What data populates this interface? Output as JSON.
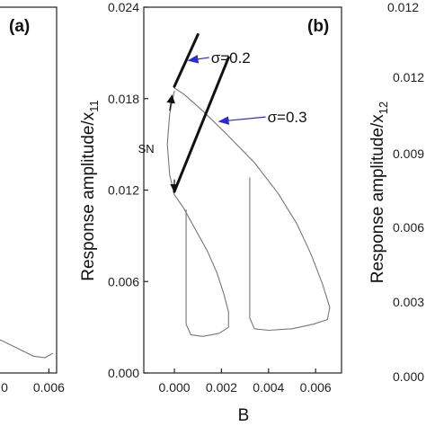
{
  "colors": {
    "curve": "#777777",
    "bold_line": "#111111",
    "arrow": "#2b2bd6",
    "axis": "#222222"
  },
  "chart_data": [
    {
      "panel": "(a)",
      "type": "line",
      "xlim": [
        0.0,
        0.0068
      ],
      "x_ticks": [
        "0.006"
      ],
      "x_tick_values": [
        0.006
      ],
      "series": [
        {
          "values_xy": [
            [
              0.0,
              0.0024
            ],
            [
              0.0012,
              0.0021
            ],
            [
              0.0028,
              0.0016
            ],
            [
              0.0044,
              0.0011
            ],
            [
              0.0056,
              0.001
            ],
            [
              0.0064,
              0.0013
            ]
          ]
        }
      ]
    },
    {
      "panel": "(b)",
      "type": "line",
      "xlabel": "B",
      "ylabel_main": "Response amplitude/x",
      "ylabel_sub": "11",
      "xlim": [
        -0.0013,
        0.0071
      ],
      "ylim": [
        0.0,
        0.024
      ],
      "x_ticks": [
        "0.000",
        "0.002",
        "0.004",
        "0.006"
      ],
      "x_tick_values": [
        0.0,
        0.002,
        0.004,
        0.006
      ],
      "y_ticks": [
        "0.000",
        "0.006",
        "0.012",
        "0.018",
        "0.024"
      ],
      "y_tick_values": [
        0.0,
        0.006,
        0.012,
        0.018,
        0.024
      ],
      "series": [
        {
          "style": "thin",
          "values_xy": [
            [
              0.0,
              0.0187
            ],
            [
              0.0004,
              0.0183
            ],
            [
              0.0012,
              0.0172
            ],
            [
              0.0022,
              0.0157
            ],
            [
              0.0034,
              0.0138
            ],
            [
              0.0044,
              0.0118
            ],
            [
              0.0052,
              0.0098
            ],
            [
              0.0058,
              0.0078
            ],
            [
              0.0063,
              0.0058
            ],
            [
              0.0066,
              0.0043
            ],
            [
              0.0065,
              0.0035
            ],
            [
              0.0059,
              0.0032
            ],
            [
              0.005,
              0.0029
            ],
            [
              0.004,
              0.0028
            ],
            [
              0.0034,
              0.0029
            ],
            [
              0.0032,
              0.0036
            ],
            [
              0.0032,
              0.006
            ],
            [
              0.0032,
              0.009
            ],
            [
              0.0032,
              0.0128
            ]
          ]
        },
        {
          "style": "thin",
          "values_xy": [
            [
              0.0,
              0.0117
            ],
            [
              0.0004,
              0.0108
            ],
            [
              0.0009,
              0.0094
            ],
            [
              0.0014,
              0.008
            ],
            [
              0.0018,
              0.0066
            ],
            [
              0.0021,
              0.0052
            ],
            [
              0.0023,
              0.004
            ],
            [
              0.0023,
              0.003
            ],
            [
              0.0019,
              0.0026
            ],
            [
              0.0012,
              0.0024
            ],
            [
              0.0007,
              0.0025
            ],
            [
              0.0005,
              0.0032
            ],
            [
              0.0005,
              0.006
            ],
            [
              0.0005,
              0.0082
            ],
            [
              0.0005,
              0.0107
            ]
          ]
        },
        {
          "style": "thin",
          "values_xy": [
            [
              0.0,
              0.0117
            ],
            [
              -0.0002,
              0.013
            ],
            [
              -0.0003,
              0.015
            ],
            [
              -0.0002,
              0.017
            ],
            [
              0.0,
              0.0185
            ]
          ]
        },
        {
          "style": "bold",
          "values_xy": [
            [
              0.0,
              0.0188
            ],
            [
              0.001,
              0.0222
            ]
          ]
        },
        {
          "style": "bold",
          "values_xy": [
            [
              0.0,
              0.0119
            ],
            [
              0.0023,
              0.0207
            ]
          ]
        }
      ],
      "annotations": [
        {
          "text": "σ=0.2",
          "at": [
            0.0014,
            0.0207
          ],
          "arrow_to": [
            0.0006,
            0.0205
          ]
        },
        {
          "text": "σ=0.3",
          "at": [
            0.0038,
            0.0168
          ],
          "arrow_to": [
            0.0019,
            0.0165
          ]
        },
        {
          "text": "SN",
          "at": [
            -0.0012,
            0.0148
          ]
        }
      ]
    },
    {
      "panel": "(c)",
      "type": "line",
      "ylabel_main": "Response amplitude/x",
      "ylabel_sub": "12",
      "y_ticks": [
        "0.012",
        "0.009",
        "0.006",
        "0.003"
      ],
      "y_tick_partial": [
        "012",
        "009",
        "006",
        "003"
      ]
    }
  ],
  "labels": {
    "panel_a": "(a)",
    "panel_b": "(b)",
    "sigma_02": "σ=0.2",
    "sigma_03": "σ=0.3",
    "sn": "SN",
    "xlabel_b": "B",
    "ylabel_b": "Response amplitude/x",
    "ylabel_b_sub": "11",
    "ylabel_c": "Response amplitude/x",
    "ylabel_c_sub": "12",
    "c_top_tick": "0.012",
    "c_tick_012": "0.012",
    "c_tick_009": "0.009",
    "c_tick_006": "0.006",
    "c_tick_003": "0.003",
    "c_bottom_tick": "0.000"
  }
}
